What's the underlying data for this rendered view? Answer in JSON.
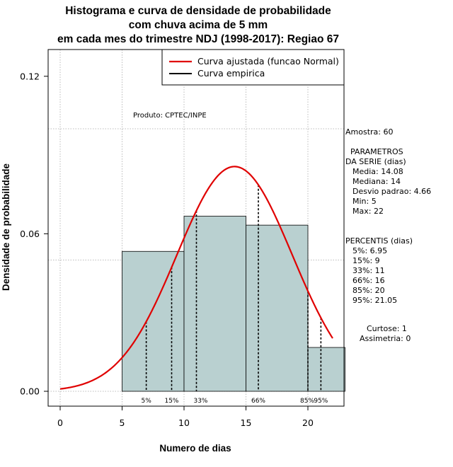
{
  "title": {
    "line1": "Histograma e curva de densidade de probabilidade",
    "line2": "com chuva acima de 5 mm",
    "line3": "em cada mes do trimestre NDJ (1998-2017): Regiao 67"
  },
  "legend": {
    "fitted": "Curva ajustada (funcao Normal)",
    "empirical": "Curva empirica"
  },
  "produto": "Produto: CPTEC/INPE",
  "side": {
    "amostra": "Amostra: 60",
    "param_title1": "PARAMETROS",
    "param_title2": "DA SERIE (dias)",
    "media": "Media: 14.08",
    "mediana": "Mediana: 14",
    "desvio": "Desvio padrao: 4.66",
    "min": "Min: 5",
    "max": "Max: 22",
    "perc_title": "PERCENTIS (dias)",
    "p5": "5%: 6.95",
    "p15": "15%: 9",
    "p33": "33%: 11",
    "p66": "66%: 16",
    "p85": "85%: 20",
    "p95": "95%: 21.05",
    "curtose": "Curtose: 1",
    "assimetria": "Assimetria: 0"
  },
  "colors": {
    "bar_fill": "#b9d0d0",
    "fitted_curve": "#e00000",
    "grid": "#bbbbbb"
  },
  "chart_data": {
    "type": "bar",
    "title": "Histograma e curva de densidade de probabilidade com chuva acima de 5 mm em cada mes do trimestre NDJ (1998-2017): Regiao 67",
    "xlabel": "Numero de dias",
    "ylabel": "Densidade de probabilidade",
    "xlim": [
      -0.8,
      23
    ],
    "ylim": [
      0,
      0.13
    ],
    "xticks": [
      0,
      5,
      10,
      15,
      20
    ],
    "yticks": [
      0.0,
      0.06,
      0.12
    ],
    "ytick_labels": [
      "0.00",
      "0.06",
      "0.12"
    ],
    "grid": true,
    "bins": [
      {
        "x0": 5,
        "x1": 10,
        "density": 0.0533
      },
      {
        "x0": 10,
        "x1": 15,
        "density": 0.0667
      },
      {
        "x0": 15,
        "x1": 20,
        "density": 0.0633
      },
      {
        "x0": 20,
        "x1": 23,
        "density": 0.0167
      }
    ],
    "normal_fit": {
      "mean": 14.08,
      "sd": 4.66,
      "x_from": 0,
      "x_to": 22
    },
    "percentiles": [
      {
        "label": "5%",
        "value": 6.95
      },
      {
        "label": "15%",
        "value": 9
      },
      {
        "label": "33%",
        "value": 11
      },
      {
        "label": "66%",
        "value": 16
      },
      {
        "label": "85%",
        "value": 20
      },
      {
        "label": "95%",
        "value": 21.05
      }
    ]
  }
}
